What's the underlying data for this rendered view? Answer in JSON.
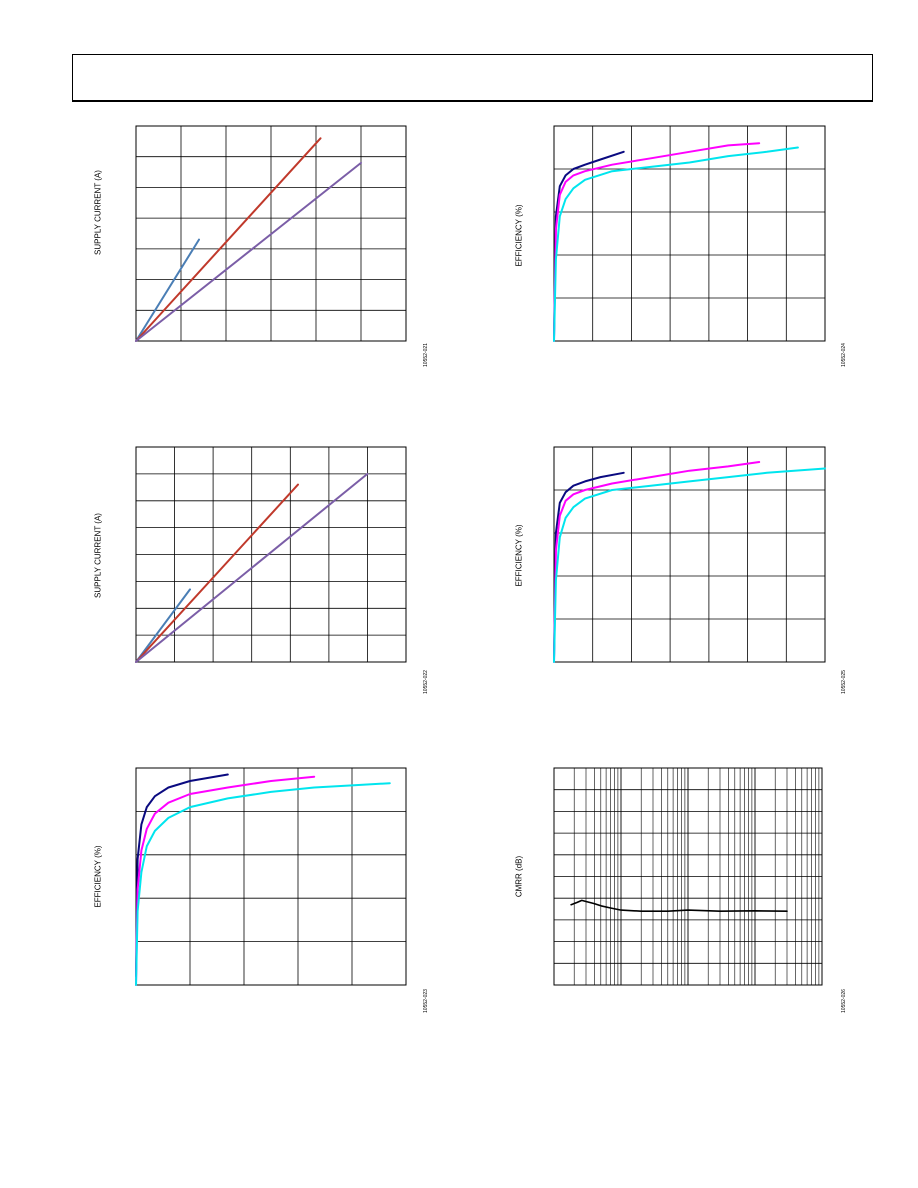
{
  "colors": {
    "blue": "#4a7eb5",
    "red": "#c0392b",
    "purple": "#7b5ea7",
    "navy": "#0a0a80",
    "magenta": "#ff00ff",
    "cyan": "#00e5ee",
    "black": "#000000"
  },
  "charts": [
    {
      "id": "chart1",
      "ylabel": "SUPPLY CURRENT (A)",
      "fig_id": "10552-021",
      "chart_data": {
        "type": "line",
        "xlabel": "",
        "ylabel": "SUPPLY CURRENT (A)",
        "grid": true,
        "xlim": [
          0,
          6
        ],
        "ylim": [
          0,
          7
        ],
        "series": [
          {
            "color": "blue",
            "x": [
              0,
              1.4
            ],
            "y": [
              0,
              3.3
            ]
          },
          {
            "color": "red",
            "x": [
              0,
              4.1
            ],
            "y": [
              0,
              6.6
            ]
          },
          {
            "color": "purple",
            "x": [
              0,
              5.0
            ],
            "y": [
              0,
              5.8
            ]
          }
        ]
      }
    },
    {
      "id": "chart2",
      "ylabel": "EFFICIENCY (%)",
      "fig_id": "10552-024",
      "chart_data": {
        "type": "line",
        "xlabel": "",
        "ylabel": "EFFICIENCY (%)",
        "grid": true,
        "xlim": [
          0,
          7
        ],
        "ylim": [
          0,
          5
        ],
        "series": [
          {
            "color": "navy",
            "x": [
              0,
              0.05,
              0.15,
              0.3,
              0.5,
              0.8,
              1.2,
              1.8
            ],
            "y": [
              0.1,
              2.9,
              3.6,
              3.85,
              4.0,
              4.1,
              4.22,
              4.4
            ]
          },
          {
            "color": "magenta",
            "x": [
              0,
              0.05,
              0.15,
              0.3,
              0.5,
              0.8,
              1.5,
              2.5,
              3.5,
              4.5,
              5.3
            ],
            "y": [
              0,
              2.6,
              3.4,
              3.7,
              3.85,
              3.95,
              4.1,
              4.25,
              4.4,
              4.55,
              4.6
            ]
          },
          {
            "color": "cyan",
            "x": [
              0,
              0.05,
              0.15,
              0.3,
              0.5,
              0.8,
              1.5,
              2.5,
              3.5,
              4.5,
              5.5,
              6.3
            ],
            "y": [
              0,
              1.9,
              2.9,
              3.3,
              3.55,
              3.75,
              3.95,
              4.05,
              4.15,
              4.3,
              4.4,
              4.5
            ]
          }
        ]
      }
    },
    {
      "id": "chart3",
      "ylabel": "SUPPLY CURRENT (A)",
      "fig_id": "10552-022",
      "chart_data": {
        "type": "line",
        "xlabel": "",
        "ylabel": "SUPPLY CURRENT (A)",
        "grid": true,
        "xlim": [
          0,
          7
        ],
        "ylim": [
          0,
          8
        ],
        "series": [
          {
            "color": "blue",
            "x": [
              0,
              1.4
            ],
            "y": [
              0,
              2.7
            ]
          },
          {
            "color": "red",
            "x": [
              0,
              4.2
            ],
            "y": [
              0,
              6.6
            ]
          },
          {
            "color": "purple",
            "x": [
              0,
              6.0
            ],
            "y": [
              0,
              7.0
            ]
          }
        ]
      }
    },
    {
      "id": "chart4",
      "ylabel": "EFFICIENCY (%)",
      "fig_id": "10552-025",
      "chart_data": {
        "type": "line",
        "xlabel": "",
        "ylabel": "EFFICIENCY (%)",
        "grid": true,
        "xlim": [
          0,
          7
        ],
        "ylim": [
          0,
          5
        ],
        "series": [
          {
            "color": "navy",
            "x": [
              0,
              0.05,
              0.15,
              0.3,
              0.5,
              0.8,
              1.2,
              1.8
            ],
            "y": [
              0.1,
              3.0,
              3.7,
              3.95,
              4.1,
              4.2,
              4.3,
              4.4
            ]
          },
          {
            "color": "magenta",
            "x": [
              0,
              0.05,
              0.15,
              0.3,
              0.5,
              0.8,
              1.5,
              2.5,
              3.5,
              4.5,
              5.3
            ],
            "y": [
              0,
              2.6,
              3.4,
              3.75,
              3.9,
              4.0,
              4.15,
              4.3,
              4.45,
              4.55,
              4.65
            ]
          },
          {
            "color": "cyan",
            "x": [
              0,
              0.05,
              0.15,
              0.3,
              0.5,
              0.8,
              1.5,
              2.5,
              3.5,
              4.5,
              5.5,
              7.0
            ],
            "y": [
              0,
              1.9,
              2.9,
              3.35,
              3.6,
              3.8,
              4.0,
              4.1,
              4.2,
              4.3,
              4.4,
              4.5
            ]
          }
        ]
      }
    },
    {
      "id": "chart5",
      "ylabel": "EFFICIENCY (%)",
      "fig_id": "10552-023",
      "chart_data": {
        "type": "line",
        "xlabel": "",
        "ylabel": "EFFICIENCY (%)",
        "grid": true,
        "xlim": [
          0,
          5
        ],
        "ylim": [
          0,
          5
        ],
        "series": [
          {
            "color": "navy",
            "x": [
              0,
              0.03,
              0.1,
              0.2,
              0.35,
              0.6,
              1.0,
              1.7
            ],
            "y": [
              0.2,
              2.9,
              3.7,
              4.1,
              4.35,
              4.55,
              4.7,
              4.85
            ]
          },
          {
            "color": "magenta",
            "x": [
              0,
              0.03,
              0.1,
              0.2,
              0.35,
              0.6,
              1.0,
              1.7,
              2.5,
              3.3
            ],
            "y": [
              0,
              2.2,
              3.1,
              3.6,
              3.95,
              4.2,
              4.4,
              4.55,
              4.7,
              4.8
            ]
          },
          {
            "color": "cyan",
            "x": [
              0,
              0.03,
              0.1,
              0.2,
              0.35,
              0.6,
              1.0,
              1.7,
              2.5,
              3.3,
              4.0,
              4.7
            ],
            "y": [
              0,
              1.7,
              2.6,
              3.2,
              3.55,
              3.85,
              4.1,
              4.3,
              4.45,
              4.55,
              4.6,
              4.65
            ]
          }
        ]
      }
    },
    {
      "id": "chart6",
      "ylabel": "CMRR (dB)",
      "fig_id": "10552-026",
      "chart_data": {
        "type": "line",
        "xlabel": "",
        "ylabel": "CMRR (dB)",
        "grid": true,
        "xscale": "log",
        "xlim": [
          1,
          10000
        ],
        "ylim": [
          0,
          10
        ],
        "series": [
          {
            "color": "black",
            "x": [
              1.8,
              2.2,
              2.6,
              3,
              4,
              5,
              7,
              10,
              20,
              50,
              100,
              300,
              1000,
              3000
            ],
            "y": [
              3.7,
              3.8,
              3.9,
              3.85,
              3.75,
              3.65,
              3.55,
              3.45,
              3.4,
              3.4,
              3.45,
              3.4,
              3.42,
              3.4
            ]
          }
        ]
      }
    }
  ]
}
